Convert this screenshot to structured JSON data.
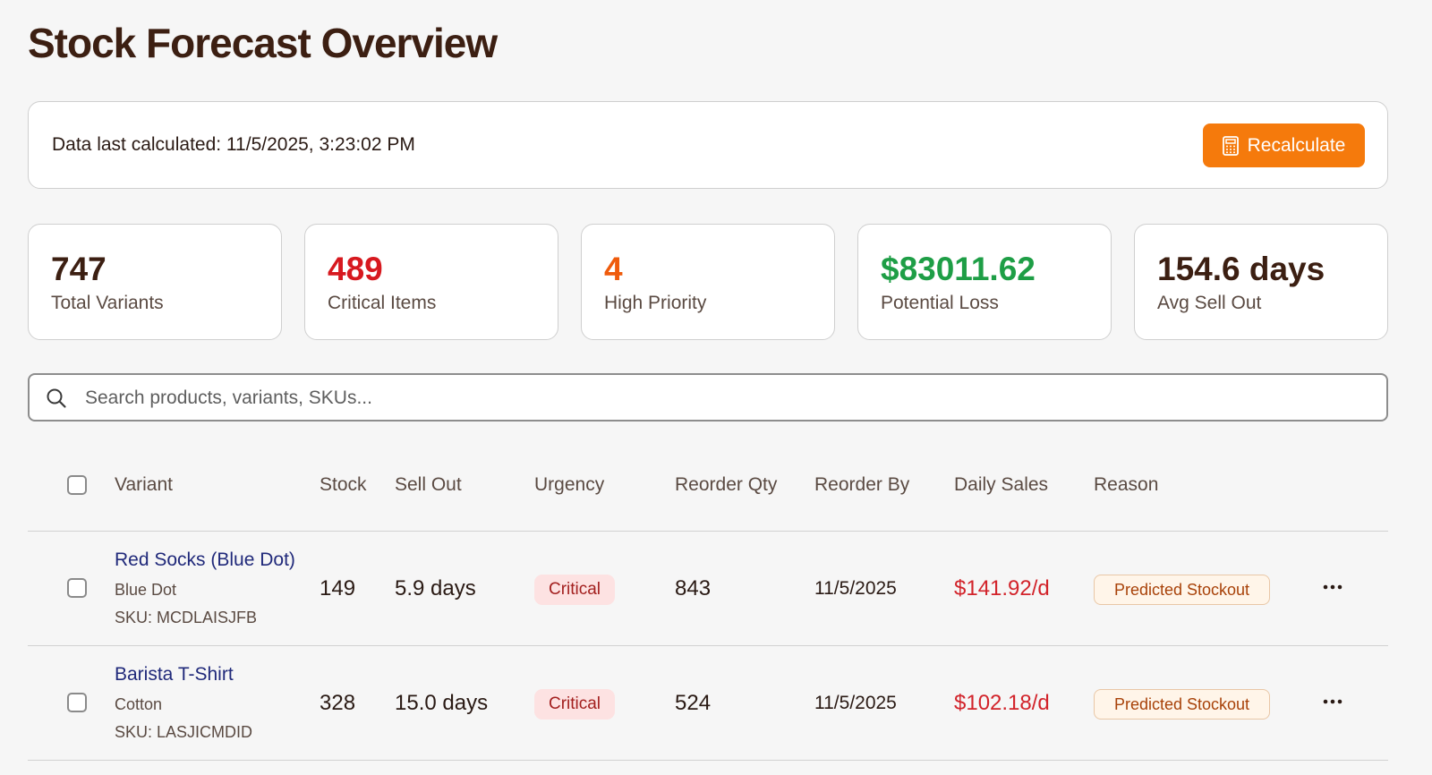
{
  "page": {
    "title": "Stock Forecast Overview"
  },
  "calc_bar": {
    "text": "Data last calculated: 11/5/2025, 3:23:02 PM",
    "button_label": "Recalculate",
    "button_icon": "calculator-icon"
  },
  "stats": [
    {
      "value": "747",
      "label": "Total Variants",
      "color": "#3c1f12"
    },
    {
      "value": "489",
      "label": "Critical Items",
      "color": "#d7191f"
    },
    {
      "value": "4",
      "label": "High Priority",
      "color": "#ef5b0c"
    },
    {
      "value": "$83011.62",
      "label": "Potential Loss",
      "color": "#1e9e46"
    },
    {
      "value": "154.6 days",
      "label": "Avg Sell Out",
      "color": "#3c1f12"
    }
  ],
  "search": {
    "placeholder": "Search products, variants, SKUs...",
    "value": "",
    "icon": "search-icon"
  },
  "table": {
    "headers": {
      "variant": "Variant",
      "stock": "Stock",
      "sell_out": "Sell Out",
      "urgency": "Urgency",
      "reorder_qty": "Reorder Qty",
      "reorder_by": "Reorder By",
      "daily_sales": "Daily Sales",
      "reason": "Reason"
    },
    "rows": [
      {
        "name": "Red Socks (Blue Dot)",
        "option": "Blue Dot",
        "sku": "SKU: MCDLAISJFB",
        "stock": "149",
        "sell_out": "5.9 days",
        "urgency": "Critical",
        "reorder_qty": "843",
        "reorder_by": "11/5/2025",
        "daily_sales": "$141.92/d",
        "reason": "Predicted Stockout"
      },
      {
        "name": "Barista T-Shirt",
        "option": "Cotton",
        "sku": "SKU: LASJICMDID",
        "stock": "328",
        "sell_out": "15.0 days",
        "urgency": "Critical",
        "reorder_qty": "524",
        "reorder_by": "11/5/2025",
        "daily_sales": "$102.18/d",
        "reason": "Predicted Stockout"
      }
    ]
  },
  "colors": {
    "accent": "#f57a0c",
    "critical_badge_bg": "#fde2e2",
    "critical_badge_text": "#a3201f",
    "reason_badge_bg": "#fff5e9",
    "reason_badge_text": "#a84209",
    "link": "#20297a",
    "daily_sales": "#d2232a"
  }
}
